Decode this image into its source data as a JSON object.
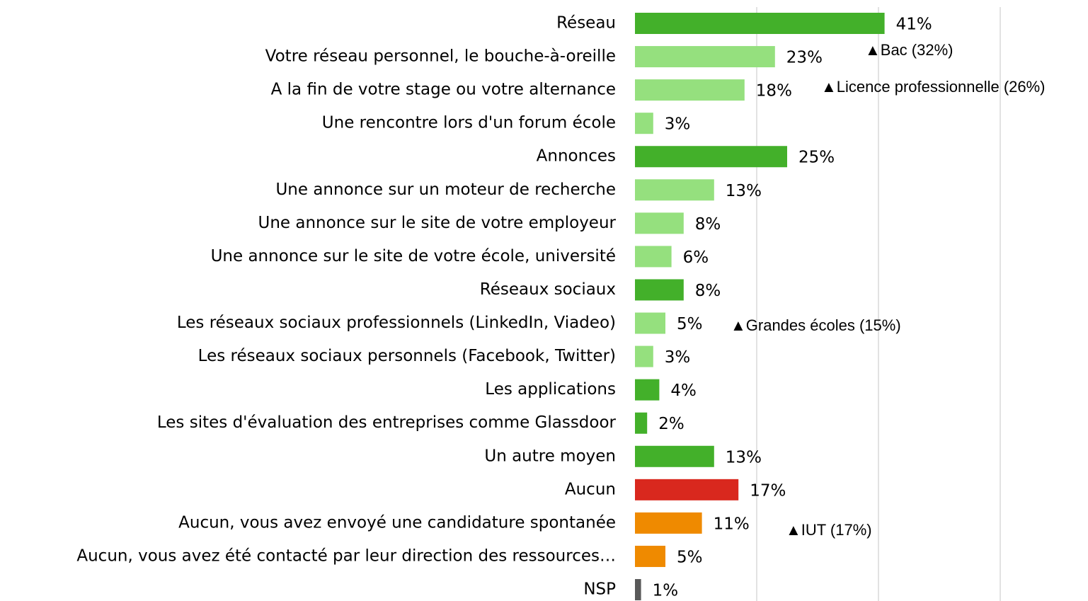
{
  "chart_data": {
    "type": "barh",
    "categories": [
      "Réseau",
      "Votre réseau personnel, le bouche-à-oreille",
      "A la fin de votre stage ou votre alternance",
      "Une rencontre lors d'un forum école",
      "Annonces",
      "Une annonce sur un moteur de recherche",
      "Une annonce sur le site de votre employeur",
      "Une annonce sur le site de votre école, université",
      "Réseaux sociaux",
      "Les réseaux sociaux professionnels (LinkedIn, Viadeo)",
      "Les réseaux sociaux personnels (Facebook, Twitter)",
      "Les applications",
      "Les sites d'évaluation des entreprises comme Glassdoor",
      "Un autre moyen",
      "Aucun",
      "Aucun, vous avez envoyé une candidature spontanée",
      "Aucun, vous avez été contacté par leur direction des ressources…",
      "NSP"
    ],
    "values": [
      41,
      23,
      18,
      3,
      25,
      13,
      8,
      6,
      8,
      5,
      3,
      4,
      2,
      13,
      17,
      11,
      5,
      1
    ],
    "value_labels": [
      "41%",
      "23%",
      "18%",
      "3%",
      "25%",
      "13%",
      "8%",
      "6%",
      "8%",
      "5%",
      "3%",
      "4%",
      "2%",
      "13%",
      "17%",
      "11%",
      "5%",
      "1%"
    ],
    "colors": [
      "#43b02a",
      "#95e07e",
      "#95e07e",
      "#95e07e",
      "#43b02a",
      "#95e07e",
      "#95e07e",
      "#95e07e",
      "#43b02a",
      "#95e07e",
      "#95e07e",
      "#43b02a",
      "#43b02a",
      "#43b02a",
      "#d9281e",
      "#ef8a00",
      "#ef8a00",
      "#595959"
    ],
    "xlim": [
      0,
      60
    ],
    "xticks": [
      20,
      40,
      60
    ],
    "grid": true,
    "annotations": [
      "▲Bac (32%)",
      "▲Licence professionnelle (26%)",
      "▲Grandes écoles (15%)",
      "▲IUT (17%)"
    ]
  }
}
